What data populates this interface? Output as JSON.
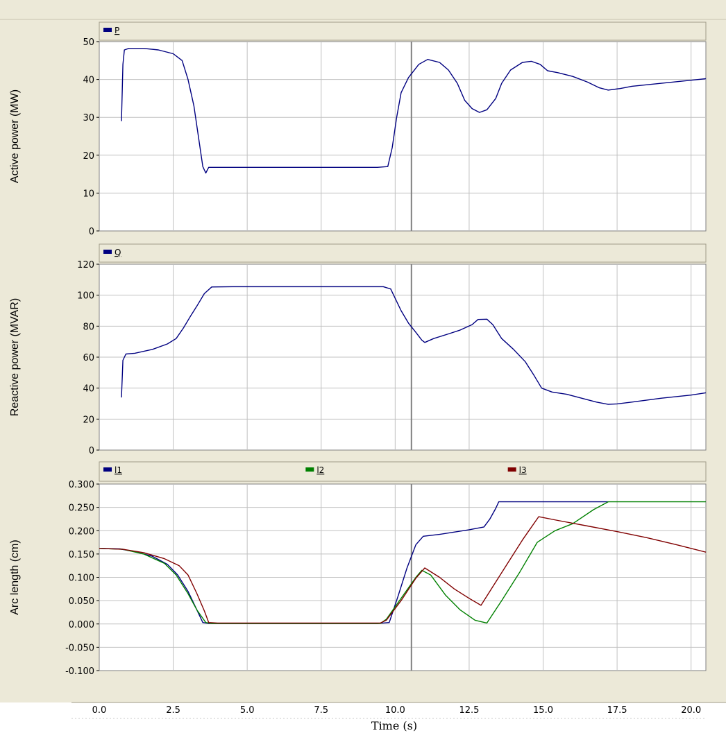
{
  "chart_data": [
    {
      "type": "line",
      "ylabel": "Active power (MW)",
      "xlim": [
        0,
        20.5
      ],
      "ylim": [
        0,
        50
      ],
      "yticks": [
        "0",
        "10",
        "20",
        "30",
        "40",
        "50"
      ],
      "grid": true,
      "legend_placement": "top",
      "series": [
        {
          "name": "P",
          "color": "#000080",
          "points": [
            [
              0.75,
              29
            ],
            [
              0.8,
              44
            ],
            [
              0.85,
              47.8
            ],
            [
              1.0,
              48.2
            ],
            [
              1.5,
              48.2
            ],
            [
              2.0,
              47.8
            ],
            [
              2.5,
              46.8
            ],
            [
              2.8,
              45
            ],
            [
              3.0,
              40
            ],
            [
              3.2,
              33
            ],
            [
              3.35,
              25
            ],
            [
              3.5,
              17
            ],
            [
              3.6,
              15.3
            ],
            [
              3.7,
              16.8
            ],
            [
              4.5,
              16.8
            ],
            [
              6.0,
              16.8
            ],
            [
              8.0,
              16.8
            ],
            [
              9.4,
              16.8
            ],
            [
              9.75,
              17
            ],
            [
              9.9,
              22
            ],
            [
              10.05,
              30
            ],
            [
              10.2,
              36.5
            ],
            [
              10.45,
              40.5
            ],
            [
              10.8,
              44
            ],
            [
              11.1,
              45.3
            ],
            [
              11.5,
              44.5
            ],
            [
              11.8,
              42.5
            ],
            [
              12.1,
              39
            ],
            [
              12.35,
              34.5
            ],
            [
              12.6,
              32.3
            ],
            [
              12.85,
              31.3
            ],
            [
              13.1,
              32
            ],
            [
              13.4,
              35
            ],
            [
              13.6,
              39
            ],
            [
              13.9,
              42.5
            ],
            [
              14.3,
              44.5
            ],
            [
              14.6,
              44.8
            ],
            [
              14.9,
              44
            ],
            [
              15.15,
              42.3
            ],
            [
              15.5,
              41.8
            ],
            [
              16.0,
              40.8
            ],
            [
              16.5,
              39.3
            ],
            [
              16.9,
              37.8
            ],
            [
              17.2,
              37.2
            ],
            [
              17.6,
              37.6
            ],
            [
              18.0,
              38.2
            ],
            [
              19.0,
              39
            ],
            [
              20.0,
              39.8
            ],
            [
              20.5,
              40.2
            ]
          ]
        }
      ]
    },
    {
      "type": "line",
      "ylabel": "Reactive power (MVAR)",
      "xlim": [
        0,
        20.5
      ],
      "ylim": [
        0,
        120
      ],
      "yticks": [
        "0",
        "20",
        "40",
        "60",
        "80",
        "100",
        "120"
      ],
      "grid": true,
      "legend_placement": "top",
      "series": [
        {
          "name": "Q",
          "color": "#000080",
          "points": [
            [
              0.75,
              34
            ],
            [
              0.8,
              58
            ],
            [
              0.9,
              62
            ],
            [
              1.2,
              62.5
            ],
            [
              1.8,
              65
            ],
            [
              2.3,
              68.5
            ],
            [
              2.6,
              72
            ],
            [
              2.85,
              79
            ],
            [
              3.1,
              87
            ],
            [
              3.3,
              93
            ],
            [
              3.55,
              101
            ],
            [
              3.8,
              105.3
            ],
            [
              4.5,
              105.5
            ],
            [
              6.0,
              105.5
            ],
            [
              8.0,
              105.5
            ],
            [
              9.6,
              105.5
            ],
            [
              9.85,
              104
            ],
            [
              10.0,
              98
            ],
            [
              10.2,
              90
            ],
            [
              10.45,
              82
            ],
            [
              10.7,
              76
            ],
            [
              10.9,
              71
            ],
            [
              11.0,
              69.5
            ],
            [
              11.3,
              72
            ],
            [
              11.8,
              75
            ],
            [
              12.2,
              77.5
            ],
            [
              12.6,
              81
            ],
            [
              12.8,
              84.3
            ],
            [
              13.1,
              84.5
            ],
            [
              13.3,
              81
            ],
            [
              13.6,
              72
            ],
            [
              14.0,
              65
            ],
            [
              14.4,
              57
            ],
            [
              14.7,
              48
            ],
            [
              14.95,
              40
            ],
            [
              15.3,
              37.5
            ],
            [
              15.8,
              36
            ],
            [
              16.3,
              33.5
            ],
            [
              16.8,
              31
            ],
            [
              17.2,
              29.5
            ],
            [
              17.5,
              29.8
            ],
            [
              18.0,
              31
            ],
            [
              19.0,
              33.5
            ],
            [
              20.0,
              35.5
            ],
            [
              20.5,
              37
            ]
          ]
        }
      ]
    },
    {
      "type": "line",
      "ylabel": "Arc length (cm)",
      "xlabel": "Time (s)",
      "xlim": [
        0,
        20.5
      ],
      "ylim": [
        -0.1,
        0.3
      ],
      "yticks": [
        "-0.100",
        "-0.050",
        "0.000",
        "0.050",
        "0.100",
        "0.150",
        "0.200",
        "0.250",
        "0.300"
      ],
      "xticks": [
        "0.0",
        "2.5",
        "5.0",
        "7.5",
        "10.0",
        "12.5",
        "15.0",
        "17.5",
        "20.0"
      ],
      "grid": true,
      "legend_placement": "top",
      "series": [
        {
          "name": "l1",
          "color": "#000080",
          "points": [
            [
              0,
              0.162
            ],
            [
              0.7,
              0.161
            ],
            [
              1.2,
              0.155
            ],
            [
              1.8,
              0.145
            ],
            [
              2.3,
              0.128
            ],
            [
              2.65,
              0.105
            ],
            [
              3.0,
              0.07
            ],
            [
              3.3,
              0.03
            ],
            [
              3.5,
              0.003
            ],
            [
              3.7,
              0.001
            ],
            [
              5,
              0.001
            ],
            [
              7,
              0.001
            ],
            [
              9.4,
              0.001
            ],
            [
              9.8,
              0.003
            ],
            [
              10.1,
              0.06
            ],
            [
              10.4,
              0.12
            ],
            [
              10.7,
              0.17
            ],
            [
              10.95,
              0.188
            ],
            [
              11.5,
              0.192
            ],
            [
              12.5,
              0.202
            ],
            [
              13.0,
              0.208
            ],
            [
              13.2,
              0.225
            ],
            [
              13.4,
              0.248
            ],
            [
              13.5,
              0.262
            ],
            [
              15,
              0.262
            ],
            [
              17.2,
              0.262
            ]
          ]
        },
        {
          "name": "l2",
          "color": "#008000",
          "points": [
            [
              0,
              0.162
            ],
            [
              0.8,
              0.16
            ],
            [
              1.5,
              0.15
            ],
            [
              2.2,
              0.13
            ],
            [
              2.6,
              0.105
            ],
            [
              3.0,
              0.065
            ],
            [
              3.3,
              0.03
            ],
            [
              3.6,
              0.003
            ],
            [
              3.8,
              0.001
            ],
            [
              5,
              0.001
            ],
            [
              7,
              0.001
            ],
            [
              9.5,
              0.001
            ],
            [
              9.7,
              0.01
            ],
            [
              10.2,
              0.055
            ],
            [
              10.7,
              0.1
            ],
            [
              10.9,
              0.115
            ],
            [
              11.2,
              0.105
            ],
            [
              11.7,
              0.062
            ],
            [
              12.2,
              0.03
            ],
            [
              12.7,
              0.008
            ],
            [
              13.1,
              0.002
            ],
            [
              13.6,
              0.05
            ],
            [
              14.2,
              0.11
            ],
            [
              14.8,
              0.175
            ],
            [
              15.4,
              0.2
            ],
            [
              16.0,
              0.215
            ],
            [
              16.7,
              0.245
            ],
            [
              17.2,
              0.262
            ],
            [
              18.5,
              0.262
            ],
            [
              20.5,
              0.262
            ]
          ]
        },
        {
          "name": "l3",
          "color": "#800000",
          "points": [
            [
              0,
              0.162
            ],
            [
              0.8,
              0.16
            ],
            [
              1.5,
              0.153
            ],
            [
              2.2,
              0.14
            ],
            [
              2.7,
              0.125
            ],
            [
              3.0,
              0.105
            ],
            [
              3.3,
              0.065
            ],
            [
              3.55,
              0.028
            ],
            [
              3.7,
              0.003
            ],
            [
              4.0,
              0.002
            ],
            [
              5,
              0.002
            ],
            [
              7,
              0.002
            ],
            [
              9.5,
              0.002
            ],
            [
              9.7,
              0.008
            ],
            [
              10.2,
              0.05
            ],
            [
              10.7,
              0.098
            ],
            [
              11.0,
              0.12
            ],
            [
              11.5,
              0.1
            ],
            [
              12.0,
              0.075
            ],
            [
              12.5,
              0.055
            ],
            [
              12.9,
              0.04
            ],
            [
              13.3,
              0.08
            ],
            [
              13.8,
              0.13
            ],
            [
              14.3,
              0.18
            ],
            [
              14.85,
              0.23
            ],
            [
              15.5,
              0.222
            ],
            [
              16.5,
              0.21
            ],
            [
              17.5,
              0.198
            ],
            [
              18.5,
              0.185
            ],
            [
              19.5,
              0.17
            ],
            [
              20.5,
              0.154
            ]
          ]
        }
      ]
    }
  ]
}
